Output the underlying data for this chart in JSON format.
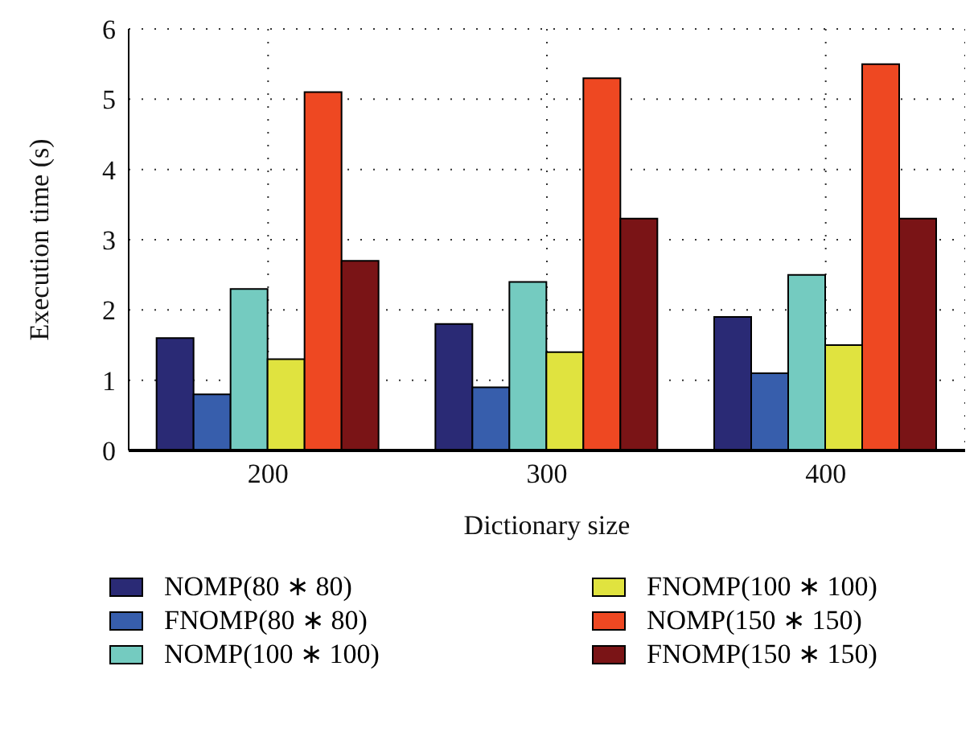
{
  "chart_data": {
    "type": "bar",
    "xlabel": "Dictionary size",
    "ylabel": "Execution time (s)",
    "categories": [
      "200",
      "300",
      "400"
    ],
    "series": [
      {
        "name": "NOMP(80 ∗ 80)",
        "color": "#2a2a75",
        "values": [
          1.6,
          1.8,
          1.9
        ]
      },
      {
        "name": "FNOMP(80 ∗ 80)",
        "color": "#375eac",
        "values": [
          0.8,
          0.9,
          1.1
        ]
      },
      {
        "name": "NOMP(100 ∗ 100)",
        "color": "#74cbc0",
        "values": [
          2.3,
          2.4,
          2.5
        ]
      },
      {
        "name": "FNOMP(100 ∗ 100)",
        "color": "#e0e33f",
        "values": [
          1.3,
          1.4,
          1.5
        ]
      },
      {
        "name": "NOMP(150 ∗ 150)",
        "color": "#ee4822",
        "values": [
          5.1,
          5.3,
          5.5
        ]
      },
      {
        "name": "FNOMP(150 ∗ 150)",
        "color": "#7a1416",
        "values": [
          2.7,
          3.3,
          3.3
        ]
      }
    ],
    "ylim": [
      0,
      6
    ],
    "yticks": [
      0,
      1,
      2,
      3,
      4,
      5,
      6
    ],
    "grid": true,
    "legend": "bottom"
  }
}
